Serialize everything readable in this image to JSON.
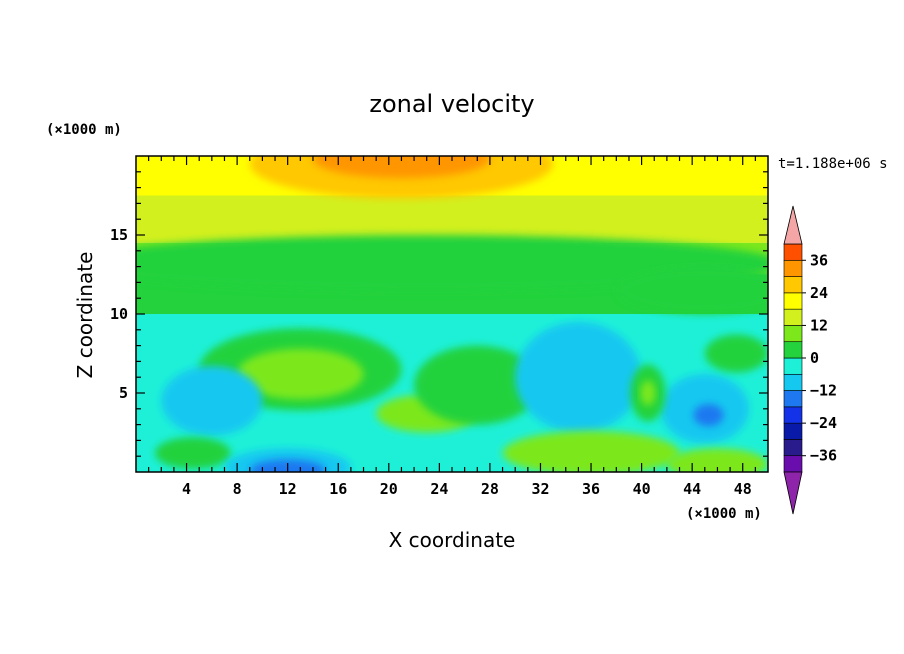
{
  "chart_data": {
    "type": "heatmap",
    "title": "zonal velocity",
    "xlabel": "X coordinate",
    "ylabel": "Z coordinate",
    "x_unit": "(×1000 m)",
    "y_unit": "(×1000 m)",
    "time_label": "t=1.188e+06 s",
    "xlim": [
      0,
      50
    ],
    "ylim": [
      0,
      20
    ],
    "x_ticks": [
      4,
      8,
      12,
      16,
      20,
      24,
      28,
      32,
      36,
      40,
      44,
      48
    ],
    "y_ticks": [
      5,
      10,
      15
    ],
    "grid": false,
    "colorbar": {
      "position": "right",
      "levels": [
        -42,
        -36,
        -30,
        -24,
        -18,
        -12,
        -6,
        0,
        6,
        12,
        18,
        24,
        30,
        36,
        42
      ],
      "colors": [
        "#6a0dad",
        "#2a1b8c",
        "#0a1aa8",
        "#1432e8",
        "#1e78f0",
        "#14c8f0",
        "#1ef0d8",
        "#23d23c",
        "#7ce81c",
        "#d2f01e",
        "#ffff00",
        "#ffc800",
        "#ff9600",
        "#ff5000",
        "#e61e1e"
      ],
      "under_color": "#8e24aa",
      "over_color": "#f4a6a6",
      "tick_labels": [
        "36",
        "24",
        "12",
        "0",
        "−12",
        "−24",
        "−36"
      ],
      "tick_values": [
        36,
        24,
        12,
        0,
        -12,
        -24,
        -36
      ]
    },
    "field": {
      "description_units": "m/s",
      "background": [
        {
          "z_min": 17.5,
          "z_max": 20,
          "value": 20
        },
        {
          "z_min": 14.5,
          "z_max": 17.5,
          "value": 14
        },
        {
          "z_min": 12.5,
          "z_max": 14.5,
          "value": 8
        },
        {
          "z_min": 10,
          "z_max": 12.5,
          "value": 2
        },
        {
          "z_min": 0,
          "z_max": 10,
          "value": -4
        }
      ],
      "features": [
        {
          "x": 21,
          "z": 19.5,
          "rx": 12,
          "rz": 2.2,
          "value": 24
        },
        {
          "x": 21,
          "z": 19.8,
          "rx": 7,
          "rz": 1.2,
          "value": 30
        },
        {
          "x": 23,
          "z": 13.2,
          "rx": 28,
          "rz": 1.8,
          "value": 2
        },
        {
          "x": 45,
          "z": 11.5,
          "rx": 7,
          "rz": 1.5,
          "value": 2
        },
        {
          "x": 13,
          "z": 6.5,
          "rx": 8,
          "rz": 2.6,
          "value": 4
        },
        {
          "x": 13,
          "z": 6.2,
          "rx": 5,
          "rz": 1.6,
          "value": 10
        },
        {
          "x": 23,
          "z": 3.7,
          "rx": 4,
          "rz": 1.2,
          "value": 8
        },
        {
          "x": 27,
          "z": 5.5,
          "rx": 5,
          "rz": 2.5,
          "value": 2
        },
        {
          "x": 35,
          "z": 6,
          "rx": 5,
          "rz": 3.5,
          "value": -8
        },
        {
          "x": 6,
          "z": 4.5,
          "rx": 4,
          "rz": 2.2,
          "value": -8
        },
        {
          "x": 45,
          "z": 4,
          "rx": 3.5,
          "rz": 2.2,
          "value": -8
        },
        {
          "x": 45.3,
          "z": 3.6,
          "rx": 1.2,
          "rz": 0.7,
          "value": -14
        },
        {
          "x": 40.5,
          "z": 5,
          "rx": 1.4,
          "rz": 1.8,
          "value": 4
        },
        {
          "x": 40.5,
          "z": 5,
          "rx": 0.6,
          "rz": 0.8,
          "value": 10
        },
        {
          "x": 47.5,
          "z": 7.5,
          "rx": 2.5,
          "rz": 1.2,
          "value": 4
        },
        {
          "x": 4.5,
          "z": 1.2,
          "rx": 3,
          "rz": 1,
          "value": 4
        },
        {
          "x": 12,
          "z": 0.3,
          "rx": 5,
          "rz": 1.2,
          "value": -8
        },
        {
          "x": 12,
          "z": 0.1,
          "rx": 3,
          "rz": 0.7,
          "value": -14
        },
        {
          "x": 36,
          "z": 1.2,
          "rx": 7,
          "rz": 1.4,
          "value": 6
        },
        {
          "x": 46,
          "z": 0.5,
          "rx": 4,
          "rz": 1,
          "value": 6
        }
      ]
    }
  }
}
